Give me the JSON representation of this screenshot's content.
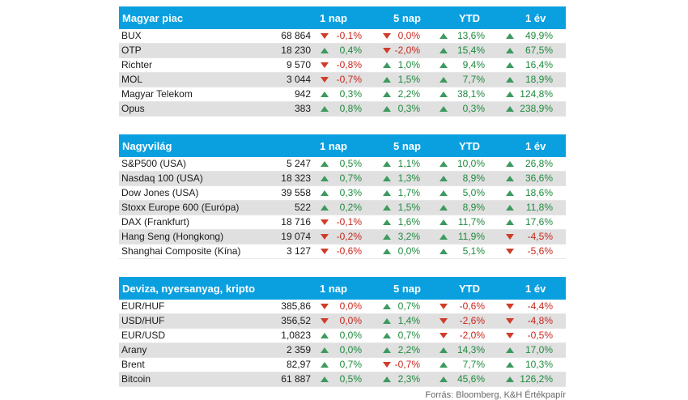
{
  "headers": {
    "d1": "1 nap",
    "d5": "5 nap",
    "ytd": "YTD",
    "y1": "1 év"
  },
  "sections": [
    {
      "title": "Magyar piac",
      "rows": [
        {
          "name": "BUX",
          "price": "68 864",
          "d1": "-0,1%",
          "d5": "0,0%",
          "ytd": "13,6%",
          "y1": "49,9%"
        },
        {
          "name": "OTP",
          "price": "18 230",
          "d1": "0,4%",
          "d5": "-2,0%",
          "ytd": "15,4%",
          "y1": "67,5%"
        },
        {
          "name": "Richter",
          "price": "9 570",
          "d1": "-0,8%",
          "d5": "1,0%",
          "ytd": "9,4%",
          "y1": "16,4%"
        },
        {
          "name": "MOL",
          "price": "3 044",
          "d1": "-0,7%",
          "d5": "1,5%",
          "ytd": "7,7%",
          "y1": "18,9%"
        },
        {
          "name": "Magyar Telekom",
          "price": "942",
          "d1": "0,3%",
          "d5": "2,2%",
          "ytd": "38,1%",
          "y1": "124,8%"
        },
        {
          "name": "Opus",
          "price": "383",
          "d1": "0,8%",
          "d5": "0,3%",
          "ytd": "0,3%",
          "y1": "238,9%"
        }
      ]
    },
    {
      "title": "Nagyvilág",
      "rows": [
        {
          "name": "S&P500 (USA)",
          "price": "5 247",
          "d1": "0,5%",
          "d5": "1,1%",
          "ytd": "10,0%",
          "y1": "26,8%"
        },
        {
          "name": "Nasdaq 100 (USA)",
          "price": "18 323",
          "d1": "0,7%",
          "d5": "1,3%",
          "ytd": "8,9%",
          "y1": "36,6%"
        },
        {
          "name": "Dow Jones (USA)",
          "price": "39 558",
          "d1": "0,3%",
          "d5": "1,7%",
          "ytd": "5,0%",
          "y1": "18,6%"
        },
        {
          "name": "Stoxx Europe 600 (Európa)",
          "price": "522",
          "d1": "0,2%",
          "d5": "1,5%",
          "ytd": "8,9%",
          "y1": "11,8%"
        },
        {
          "name": "DAX (Frankfurt)",
          "price": "18 716",
          "d1": "-0,1%",
          "d5": "1,6%",
          "ytd": "11,7%",
          "y1": "17,6%"
        },
        {
          "name": "Hang Seng (Hongkong)",
          "price": "19 074",
          "d1": "-0,2%",
          "d5": "3,2%",
          "ytd": "11,9%",
          "y1": "-4,5%"
        },
        {
          "name": "Shanghai Composite (Kína)",
          "price": "3 127",
          "d1": "-0,6%",
          "d5": "0,0%",
          "ytd": "5,1%",
          "y1": "-5,6%"
        }
      ]
    },
    {
      "title": "Deviza, nyersanyag, kripto",
      "rows": [
        {
          "name": "EUR/HUF",
          "price": "385,86",
          "d1": "0,0%",
          "d5": "0,7%",
          "ytd": "-0,6%",
          "y1": "-4,4%"
        },
        {
          "name": "USD/HUF",
          "price": "356,52",
          "d1": "0,0%",
          "d5": "1,4%",
          "ytd": "-2,6%",
          "y1": "-4,8%"
        },
        {
          "name": "EUR/USD",
          "price": "1,0823",
          "d1": "0,0%",
          "d5": "0,7%",
          "ytd": "-2,0%",
          "y1": "-0,5%"
        },
        {
          "name": "Arany",
          "price": "2 359",
          "d1": "0,0%",
          "d5": "2,2%",
          "ytd": "14,3%",
          "y1": "17,0%"
        },
        {
          "name": "Brent",
          "price": "82,97",
          "d1": "0,7%",
          "d5": "-0,7%",
          "ytd": "7,7%",
          "y1": "10,3%"
        },
        {
          "name": "Bitcoin",
          "price": "61 887",
          "d1": "0,5%",
          "d5": "2,3%",
          "ytd": "45,6%",
          "y1": "126,2%"
        }
      ]
    }
  ],
  "direction_overrides": {
    "0.0.d1": "down",
    "0.0.d5": "down",
    "2.0.d1": "down",
    "2.1.d1": "down",
    "2.2.d1": "up",
    "2.3.d1": "up"
  },
  "source": "Forrás: Bloomberg, K&H Értékpapír",
  "colors": {
    "header_bg": "#0aa0e0",
    "up": "#3d9a5f",
    "down": "#cf3d2a",
    "alt_row": "#e0e0e0"
  }
}
